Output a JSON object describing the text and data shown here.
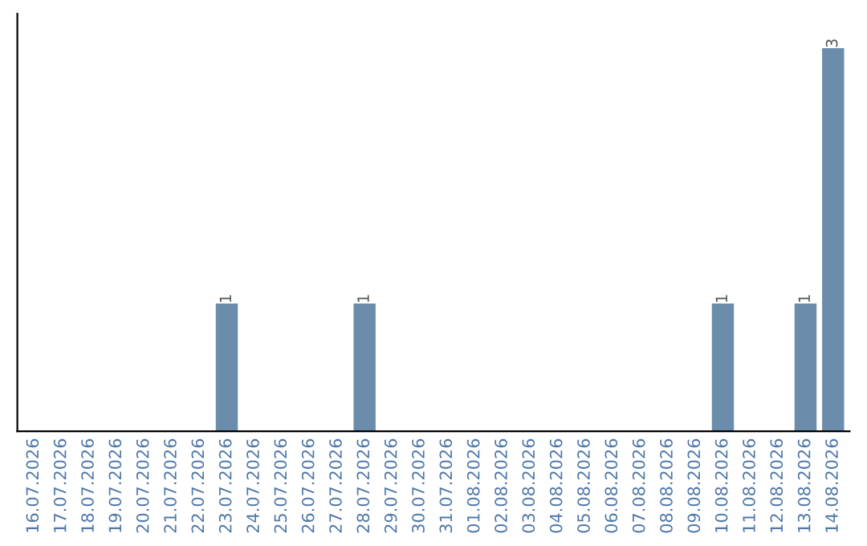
{
  "chart_data": {
    "type": "bar",
    "categories": [
      "16.07.2026",
      "17.07.2026",
      "18.07.2026",
      "19.07.2026",
      "20.07.2026",
      "21.07.2026",
      "22.07.2026",
      "23.07.2026",
      "24.07.2026",
      "25.07.2026",
      "26.07.2026",
      "27.07.2026",
      "28.07.2026",
      "29.07.2026",
      "30.07.2026",
      "31.07.2026",
      "01.08.2026",
      "02.08.2026",
      "03.08.2026",
      "04.08.2026",
      "05.08.2026",
      "06.08.2026",
      "07.08.2026",
      "08.08.2026",
      "09.08.2026",
      "10.08.2026",
      "11.08.2026",
      "12.08.2026",
      "13.08.2026",
      "14.08.2026"
    ],
    "values": [
      0,
      0,
      0,
      0,
      0,
      0,
      0,
      1,
      0,
      0,
      0,
      0,
      1,
      0,
      0,
      0,
      0,
      0,
      0,
      0,
      0,
      0,
      0,
      0,
      0,
      1,
      0,
      0,
      1,
      3
    ],
    "value_labels": [
      null,
      null,
      null,
      null,
      null,
      null,
      null,
      "1",
      null,
      null,
      null,
      null,
      "1",
      null,
      null,
      null,
      null,
      null,
      null,
      null,
      null,
      null,
      null,
      null,
      null,
      "1",
      null,
      null,
      "1",
      "3"
    ],
    "color": "#6c8cab",
    "grid": false,
    "legend": false,
    "tick_labels": "x"
  }
}
